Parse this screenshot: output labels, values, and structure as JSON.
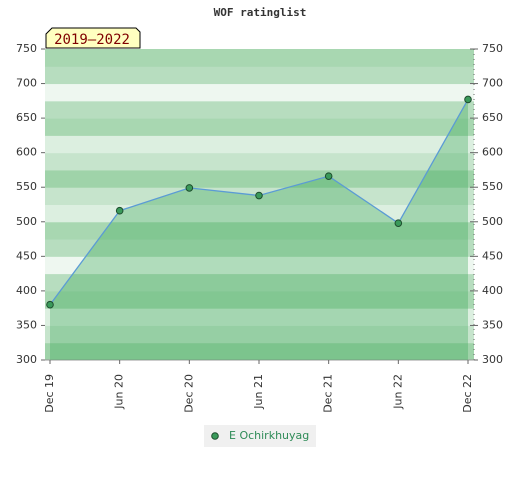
{
  "chart_data": {
    "type": "line",
    "title": "WOF ratinglist",
    "period": "2019–2022",
    "categories": [
      "Dec 19",
      "Jun 20",
      "Dec 20",
      "Jun 21",
      "Dec 21",
      "Jun 22",
      "Dec 22"
    ],
    "series": [
      {
        "name": "E Ochirkhuyag",
        "color": "#5b9bd5",
        "values": [
          380,
          516,
          549,
          538,
          566,
          498,
          677
        ]
      }
    ],
    "ylim": [
      300,
      750
    ],
    "yticks": [
      300,
      350,
      400,
      450,
      500,
      550,
      600,
      650,
      700,
      750
    ],
    "y2lim": [
      300,
      750
    ],
    "y2ticks": [
      300,
      350,
      400,
      450,
      500,
      550,
      600,
      650,
      700,
      750
    ]
  }
}
